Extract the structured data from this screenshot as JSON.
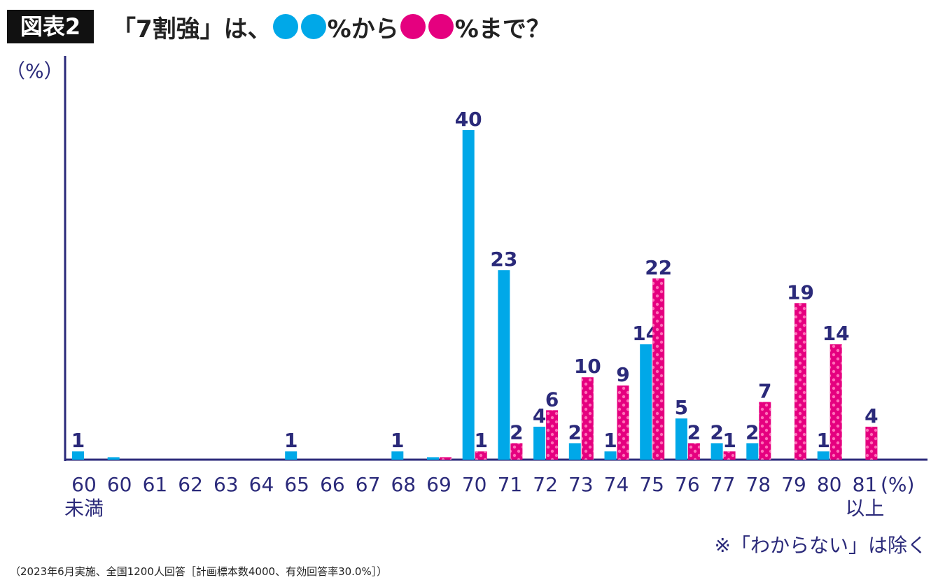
{
  "chart_data": {
    "type": "bar",
    "badge": "図表2",
    "title_parts": [
      "「7割強」は、",
      "%から",
      "%まで？"
    ],
    "ylabel": "（%）",
    "xlabel": "(%)",
    "note": "※「わからない」は除く",
    "footnote": "（2023年6月実施、全国1200人回答［計画標本数4000、有効回答率30.0%］）",
    "categories": [
      "60\n未満",
      "60",
      "61",
      "62",
      "63",
      "64",
      "65",
      "66",
      "67",
      "68",
      "69",
      "70",
      "71",
      "72",
      "73",
      "74",
      "75",
      "76",
      "77",
      "78",
      "79",
      "80",
      "81\n以上"
    ],
    "series": [
      {
        "color": "#00a8e8",
        "values": [
          1,
          0.3,
          null,
          null,
          null,
          null,
          1,
          null,
          null,
          1,
          0.3,
          40,
          23,
          4,
          2,
          1,
          14,
          5,
          2,
          2,
          null,
          1,
          null
        ]
      },
      {
        "color": "#e5007f",
        "values": [
          null,
          null,
          null,
          null,
          null,
          null,
          null,
          null,
          null,
          null,
          0.3,
          1,
          2,
          6,
          10,
          9,
          22,
          2,
          1,
          7,
          19,
          14,
          4
        ]
      }
    ],
    "ylim": [
      0,
      49
    ]
  }
}
